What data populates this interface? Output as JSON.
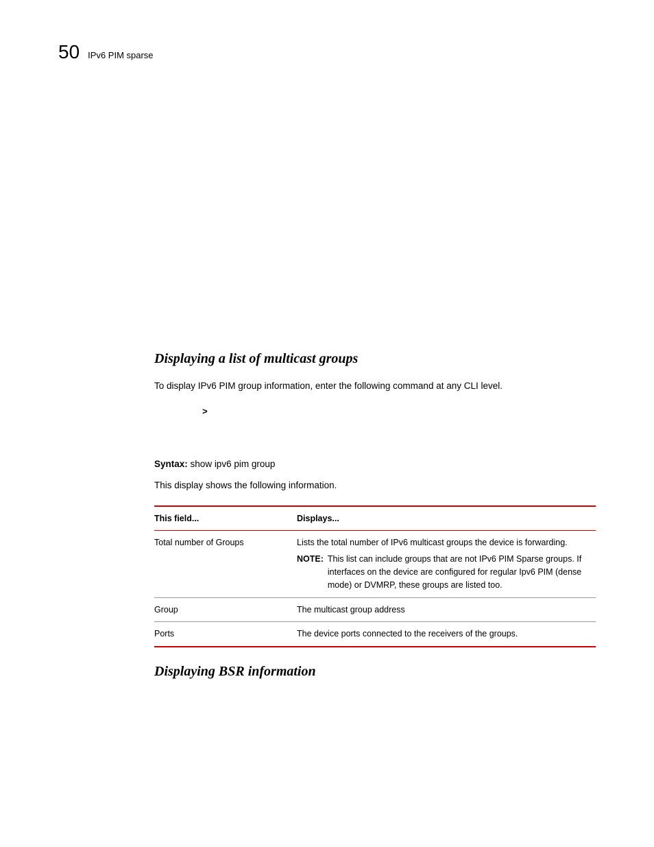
{
  "header": {
    "chapter_number": "50",
    "title": "IPv6 PIM sparse"
  },
  "section1": {
    "heading": "Displaying a list of multicast groups",
    "intro": "To display IPv6 PIM  group information, enter the following command at any CLI level.",
    "cli_prompt": ">",
    "syntax_label": "Syntax:",
    "syntax_cmd": "show ipv6 pim group",
    "post_syntax": "This display shows the following information."
  },
  "table": {
    "header_col1": "This field...",
    "header_col2": "Displays...",
    "rows": [
      {
        "field": "Total number of Groups",
        "display_main": "Lists the total number of IPv6 multicast groups the device is forwarding.",
        "note_label": "NOTE:",
        "note_text": "This list can include groups that are not IPv6 PIM Sparse groups.  If interfaces on the device are configured for regular Ipv6 PIM (dense mode) or DVMRP, these groups are listed too."
      },
      {
        "field": "Group",
        "display_main": "The multicast group address"
      },
      {
        "field": "Ports",
        "display_main": "The device ports connected to the receivers of the groups."
      }
    ]
  },
  "section2": {
    "heading": "Displaying BSR information"
  },
  "colors": {
    "rule_red": "#cc0000",
    "rule_gray": "#999999",
    "text": "#000000",
    "background": "#ffffff"
  }
}
